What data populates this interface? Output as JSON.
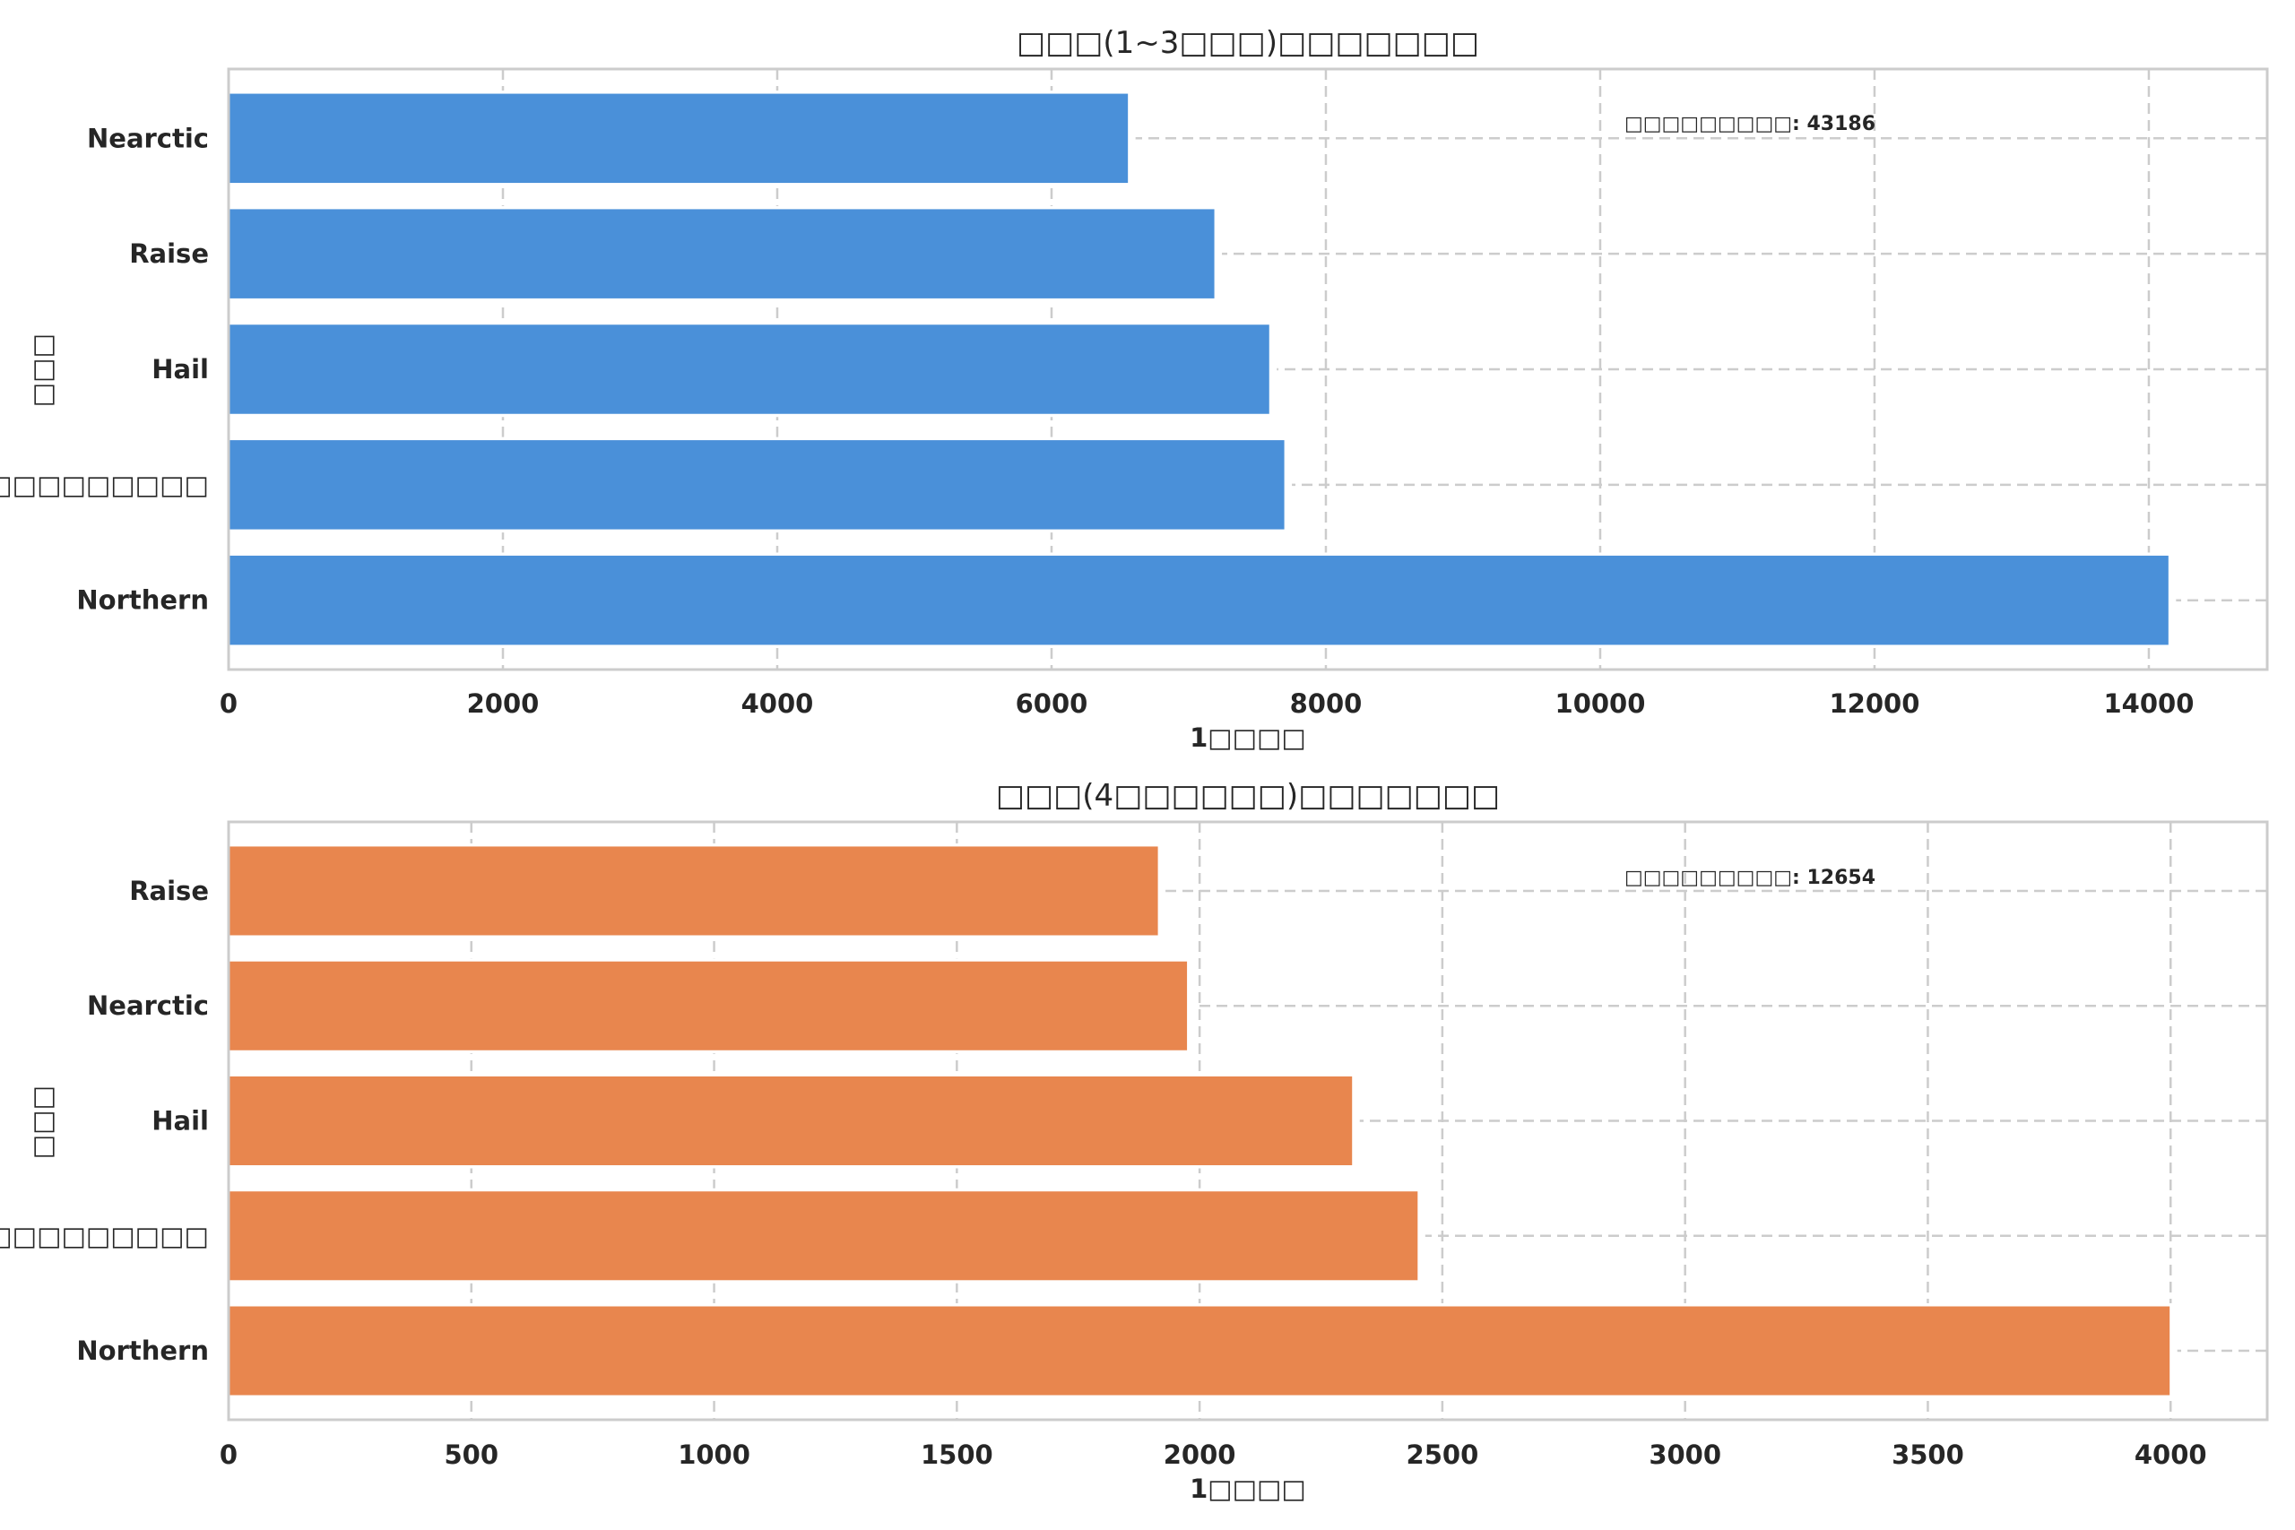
{
  "chart_data": [
    {
      "type": "bar",
      "orientation": "horizontal",
      "title": "□□□(1~3□□□)□□□□□□□",
      "xlabel": "1□□□□",
      "ylabel": "□□□",
      "categories": [
        "Nearctic",
        "Raise",
        "Hail",
        "□□□□□□□□□",
        "Northern"
      ],
      "values": [
        6560,
        7190,
        7590,
        7700,
        14146
      ],
      "xlim": [
        0,
        14863
      ],
      "xticks": [
        "0",
        "2000",
        "4000",
        "6000",
        "8000",
        "10000",
        "12000",
        "14000"
      ],
      "xtick_values": [
        0,
        2000,
        4000,
        6000,
        8000,
        10000,
        12000,
        14000
      ],
      "annotation": "□□□□□□□□□: 43186",
      "color": "#4a90d9",
      "grid": true
    },
    {
      "type": "bar",
      "orientation": "horizontal",
      "title": "□□□(4□□□□□□)□□□□□□□",
      "xlabel": "1□□□□",
      "ylabel": "□□□",
      "categories": [
        "Raise",
        "Nearctic",
        "Hail",
        "□□□□□□□□□",
        "Northern"
      ],
      "values": [
        1915,
        1975,
        2315,
        2450,
        3999
      ],
      "xlim": [
        0,
        4199
      ],
      "xticks": [
        "0",
        "500",
        "1000",
        "1500",
        "2000",
        "2500",
        "3000",
        "3500",
        "4000"
      ],
      "xtick_values": [
        0,
        500,
        1000,
        1500,
        2000,
        2500,
        3000,
        3500,
        4000
      ],
      "annotation": "□□□□□□□□□: 12654",
      "color": "#e8864e",
      "grid": true
    }
  ]
}
